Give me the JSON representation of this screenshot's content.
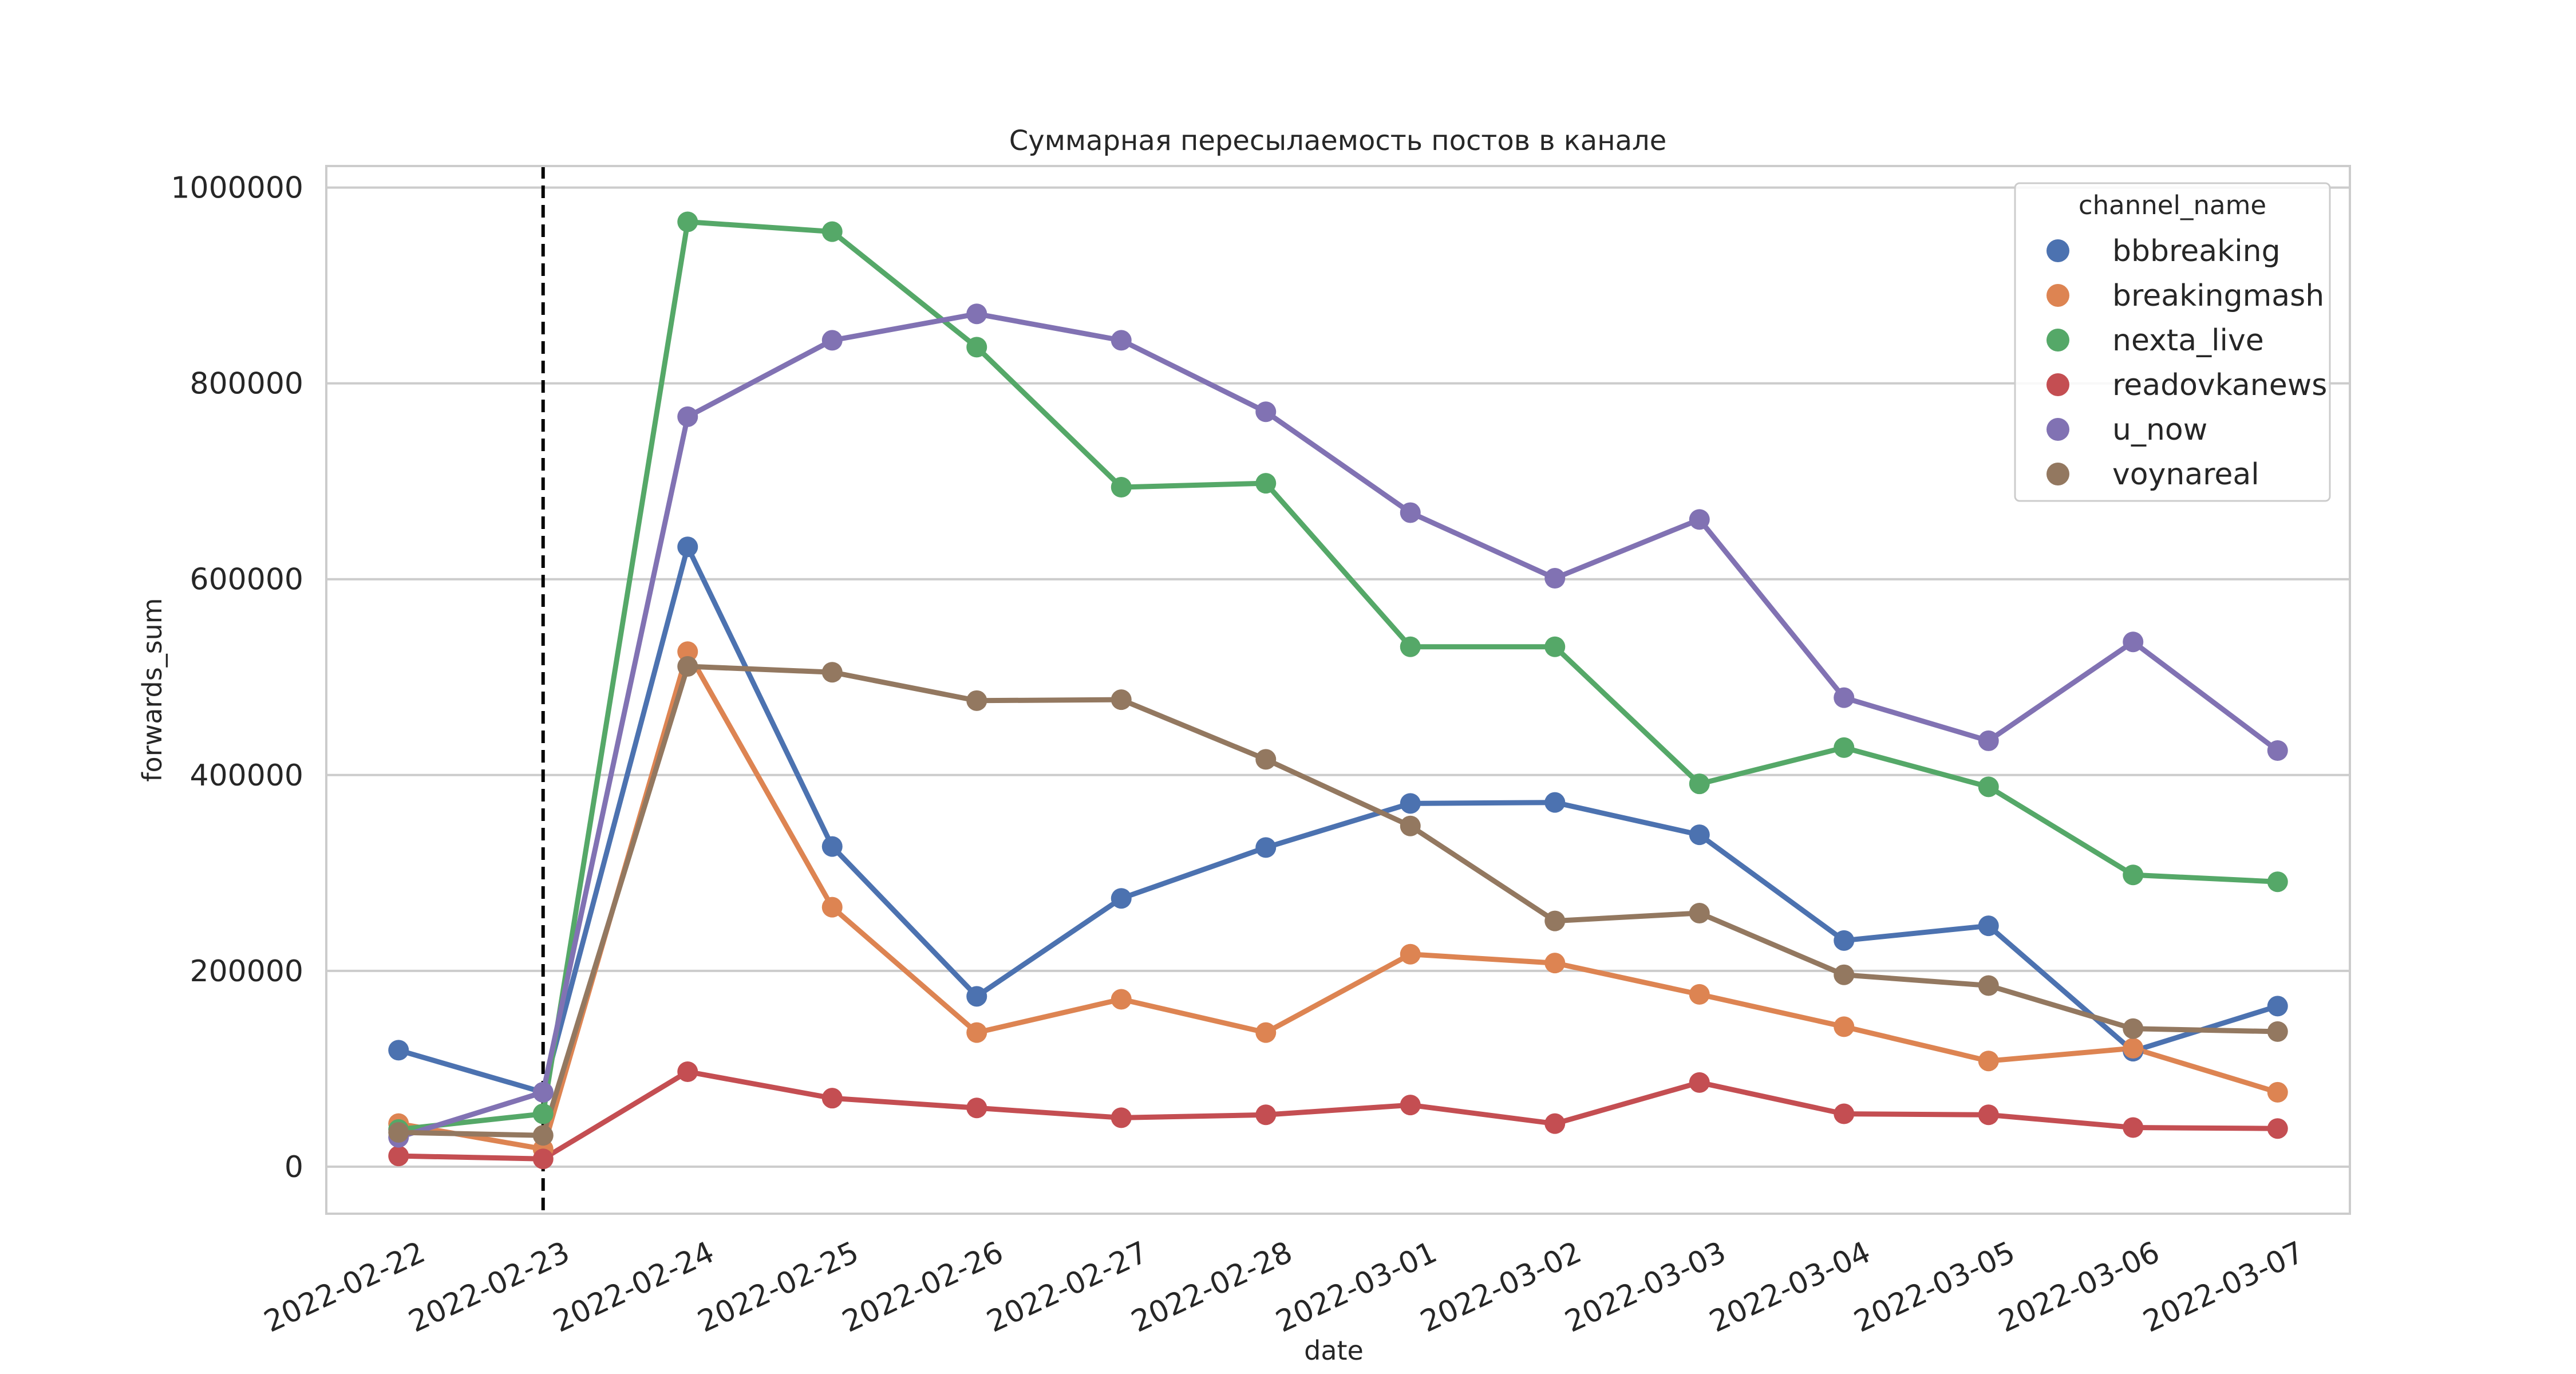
{
  "chart_data": {
    "type": "line",
    "title": "Суммарная пересылаемость постов в канале",
    "xlabel": "date",
    "ylabel": "forwards_sum",
    "categories": [
      "2022-02-22",
      "2022-02-23",
      "2022-02-24",
      "2022-02-25",
      "2022-02-26",
      "2022-02-27",
      "2022-02-28",
      "2022-03-01",
      "2022-03-02",
      "2022-03-03",
      "2022-03-04",
      "2022-03-05",
      "2022-03-06",
      "2022-03-07"
    ],
    "ylim": [
      -48000,
      1022000
    ],
    "yticks": [
      0,
      200000,
      400000,
      600000,
      800000,
      1000000
    ],
    "ytick_labels": [
      "0",
      "200000",
      "400000",
      "600000",
      "800000",
      "1000000"
    ],
    "vertical_marker": {
      "category": "2022-02-23",
      "style": "dashed",
      "color": "#000000"
    },
    "grid": "horizontal",
    "legend": {
      "title": "channel_name",
      "position": "top-right"
    },
    "series": [
      {
        "name": "bbbreaking",
        "color": "#4c72b0",
        "values": [
          119000,
          76000,
          633000,
          327000,
          174000,
          274000,
          326000,
          371000,
          372000,
          339000,
          231000,
          246000,
          118000,
          164000
        ]
      },
      {
        "name": "breakingmash",
        "color": "#dd8452",
        "values": [
          44000,
          18000,
          526000,
          265000,
          137000,
          171000,
          137000,
          217000,
          208000,
          176000,
          143000,
          108000,
          121000,
          76000
        ]
      },
      {
        "name": "nexta_live",
        "color": "#55a868",
        "values": [
          38000,
          54000,
          965000,
          955000,
          837000,
          694000,
          698000,
          531000,
          531000,
          391000,
          428000,
          388000,
          298000,
          291000
        ]
      },
      {
        "name": "readovkanews",
        "color": "#c44e52",
        "values": [
          11000,
          8000,
          97000,
          70000,
          60000,
          50000,
          53000,
          63000,
          44000,
          86000,
          54000,
          53000,
          40000,
          39000
        ]
      },
      {
        "name": "u_now",
        "color": "#8172b3",
        "values": [
          30000,
          76000,
          766000,
          844000,
          871000,
          844000,
          771000,
          668000,
          601000,
          661000,
          479000,
          435000,
          536000,
          425000
        ]
      },
      {
        "name": "voynareal",
        "color": "#937860",
        "values": [
          35000,
          32000,
          511000,
          505000,
          476000,
          477000,
          416000,
          348000,
          251000,
          259000,
          196000,
          185000,
          141000,
          138000
        ]
      }
    ]
  }
}
